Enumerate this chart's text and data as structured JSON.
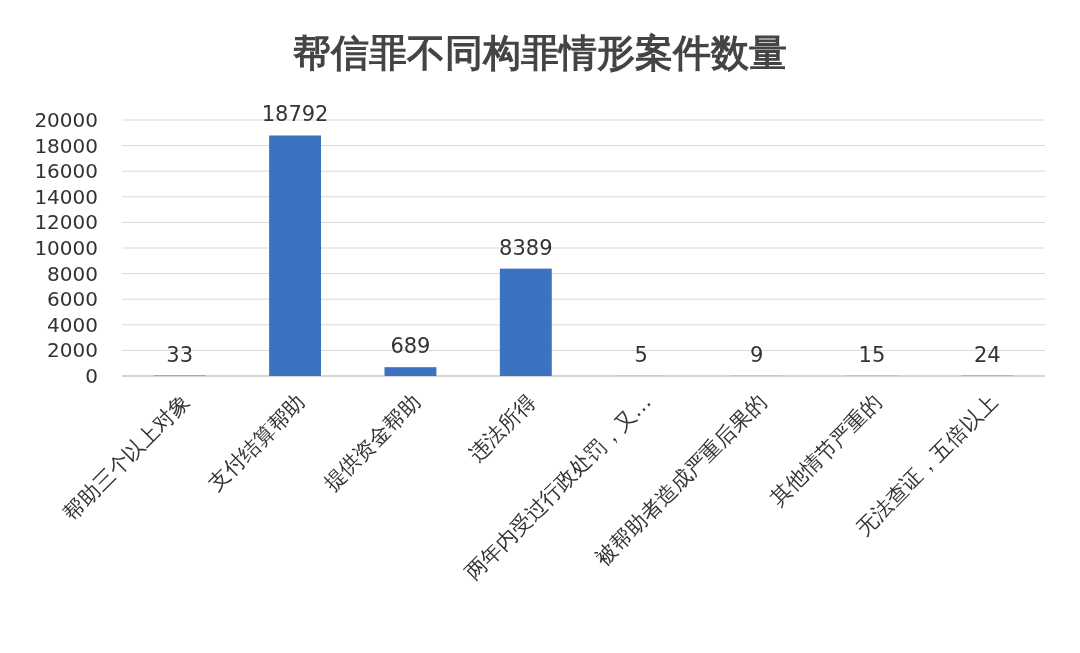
{
  "chart_data": {
    "type": "bar",
    "title": "帮信罪不同构罪情形案件数量",
    "categories": [
      "帮助三个以上对象",
      "支付结算帮助",
      "提供资金帮助",
      "违法所得",
      "两年内受过行政处罚，又…",
      "被帮助者造成严重后果的",
      "其他情节严重的",
      "无法查证，五倍以上"
    ],
    "values": [
      33,
      18792,
      689,
      8389,
      5,
      9,
      15,
      24
    ],
    "color": "#3d72c0",
    "ylim": [
      0,
      20000
    ],
    "yticks": [
      0,
      2000,
      4000,
      6000,
      8000,
      10000,
      12000,
      14000,
      16000,
      18000,
      20000
    ],
    "grid": "y",
    "data_labels": true
  }
}
